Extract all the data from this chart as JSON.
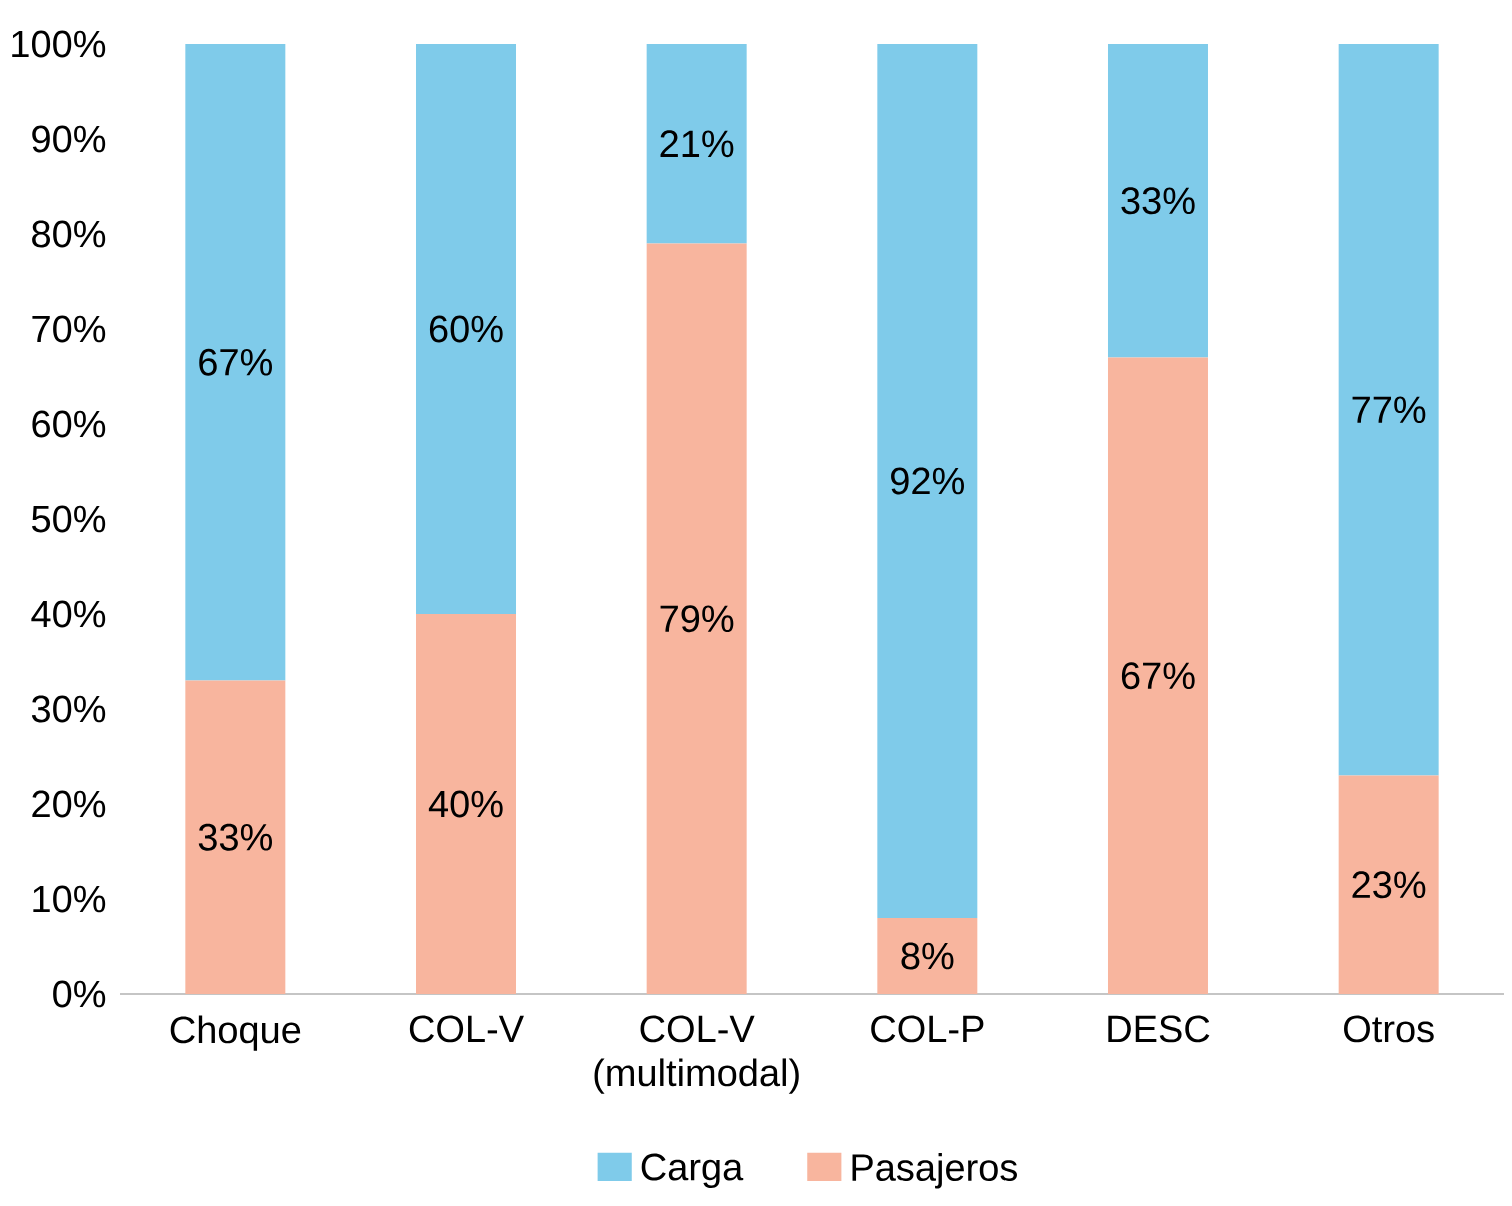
{
  "chart_data": {
    "type": "bar",
    "stacked": true,
    "categories": [
      "Choque",
      "COL-V",
      "COL-V (multimodal)",
      "COL-P",
      "DESC",
      "Otros"
    ],
    "series": [
      {
        "name": "Pasajeros",
        "color": "#f8b59e",
        "values": [
          33,
          40,
          79,
          8,
          67,
          23
        ],
        "value_labels": [
          "33%",
          "40%",
          "79%",
          "8%",
          "67%",
          "23%"
        ]
      },
      {
        "name": "Carga",
        "color": "#7fcbea",
        "values": [
          67,
          60,
          21,
          92,
          33,
          77
        ],
        "value_labels": [
          "67%",
          "60%",
          "21%",
          "92%",
          "33%",
          "77%"
        ]
      }
    ],
    "ylim": [
      0,
      100
    ],
    "yticks": [
      {
        "value": 0,
        "label": "0%"
      },
      {
        "value": 10,
        "label": "10%"
      },
      {
        "value": 20,
        "label": "20%"
      },
      {
        "value": 30,
        "label": "30%"
      },
      {
        "value": 40,
        "label": "40%"
      },
      {
        "value": 50,
        "label": "50%"
      },
      {
        "value": 60,
        "label": "60%"
      },
      {
        "value": 70,
        "label": "70%"
      },
      {
        "value": 80,
        "label": "80%"
      },
      {
        "value": 90,
        "label": "90%"
      },
      {
        "value": 100,
        "label": "100%"
      }
    ],
    "legend": "bottom"
  }
}
